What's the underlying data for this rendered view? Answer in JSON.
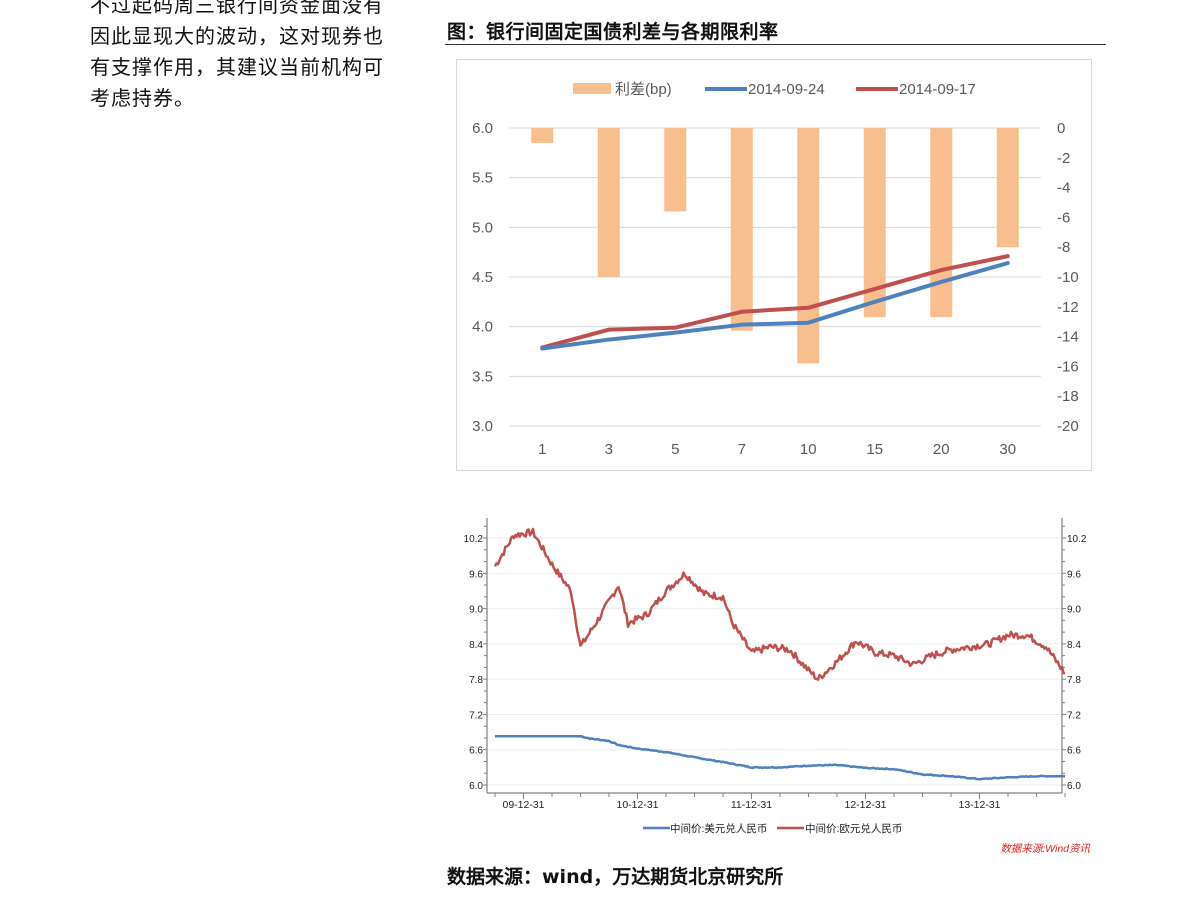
{
  "paragraph": {
    "lines": [
      "不过起码周三银行间资金面没有",
      "因此显现大的波动，这对现券也",
      "有支撑作用，其建议当前机构可",
      "考虑持券。"
    ]
  },
  "figure": {
    "title": "图：银行间固定国债利差与各期限利率"
  },
  "footer": {
    "source": "数据来源：wind，万达期货北京研究所"
  },
  "chart_data": [
    {
      "type": "bar+line",
      "title": "银行间固定国债利差与各期限利率",
      "categories": [
        "1",
        "3",
        "5",
        "7",
        "10",
        "15",
        "20",
        "30"
      ],
      "series": [
        {
          "name": "利差(bp)",
          "type": "bar",
          "axis": "right",
          "color": "#F8BF8E",
          "values": [
            -1.0,
            -10.0,
            -5.6,
            -13.6,
            -15.8,
            -12.7,
            -12.7,
            -8.0
          ]
        },
        {
          "name": "2014-09-24",
          "type": "line",
          "axis": "left",
          "color": "#4F81BD",
          "values": [
            3.78,
            3.87,
            3.94,
            4.02,
            4.04,
            4.25,
            4.45,
            4.64
          ]
        },
        {
          "name": "2014-09-17",
          "type": "line",
          "axis": "left",
          "color": "#C0504D",
          "values": [
            3.79,
            3.97,
            3.99,
            4.15,
            4.19,
            4.38,
            4.57,
            4.71
          ]
        }
      ],
      "left_axis": {
        "ylim": [
          3.0,
          6.0
        ],
        "ticks": [
          "6.0",
          "5.5",
          "5.0",
          "4.5",
          "4.0",
          "3.5",
          "3.0"
        ]
      },
      "right_axis": {
        "ylim": [
          -20,
          0
        ],
        "ticks": [
          "0",
          "-2",
          "-4",
          "-6",
          "-8",
          "-10",
          "-12",
          "-14",
          "-16",
          "-18",
          "-20"
        ]
      },
      "legend": [
        "利差(bp)",
        "2014-09-24",
        "2014-09-17"
      ],
      "legend_position": "top",
      "grid": true
    },
    {
      "type": "line",
      "title": "",
      "x_ticks": [
        "09-12-31",
        "10-12-31",
        "11-12-31",
        "12-12-31",
        "13-12-31"
      ],
      "x_range": [
        "2009-09",
        "2014-09"
      ],
      "y_ticks": [
        "10.2",
        "9.6",
        "9.0",
        "8.4",
        "7.8",
        "7.2",
        "6.6",
        "6.0"
      ],
      "ylim": [
        6.0,
        10.4
      ],
      "series": [
        {
          "name": "中间价:美元兑人民币",
          "color": "#4F81BD",
          "x": [
            "2009-09",
            "2009-12",
            "2010-03",
            "2010-06",
            "2010-07",
            "2010-09",
            "2010-10",
            "2010-12",
            "2011-03",
            "2011-06",
            "2011-09",
            "2011-12",
            "2012-03",
            "2012-06",
            "2012-09",
            "2012-12",
            "2013-03",
            "2013-06",
            "2013-09",
            "2013-12",
            "2014-03",
            "2014-06",
            "2014-09"
          ],
          "values": [
            6.83,
            6.83,
            6.83,
            6.83,
            6.79,
            6.75,
            6.68,
            6.62,
            6.56,
            6.47,
            6.39,
            6.3,
            6.3,
            6.33,
            6.34,
            6.29,
            6.27,
            6.18,
            6.15,
            6.1,
            6.13,
            6.15,
            6.15
          ]
        },
        {
          "name": "中间价:欧元兑人民币",
          "color": "#C0504D",
          "x": [
            "2009-09",
            "2009-11",
            "2010-01",
            "2010-03",
            "2010-05",
            "2010-06",
            "2010-08",
            "2010-10",
            "2010-11",
            "2011-01",
            "2011-03",
            "2011-05",
            "2011-07",
            "2011-09",
            "2011-10",
            "2011-12",
            "2012-02",
            "2012-04",
            "2012-06",
            "2012-07",
            "2012-09",
            "2012-11",
            "2013-01",
            "2013-03",
            "2013-05",
            "2013-07",
            "2013-09",
            "2013-11",
            "2014-01",
            "2014-03",
            "2014-05",
            "2014-07",
            "2014-09"
          ],
          "values": [
            9.72,
            10.25,
            10.3,
            9.75,
            9.3,
            8.35,
            8.85,
            9.4,
            8.75,
            8.9,
            9.3,
            9.6,
            9.25,
            9.2,
            8.75,
            8.25,
            8.35,
            8.3,
            7.95,
            7.8,
            8.1,
            8.45,
            8.25,
            8.2,
            8.05,
            8.2,
            8.3,
            8.35,
            8.4,
            8.55,
            8.55,
            8.35,
            7.9
          ]
        }
      ],
      "legend": [
        "中间价:美元兑人民币",
        "中间价:欧元兑人民币"
      ],
      "legend_position": "bottom",
      "source_note": "数据来源:Wind资讯",
      "source_note_color": "#E0201F"
    }
  ]
}
